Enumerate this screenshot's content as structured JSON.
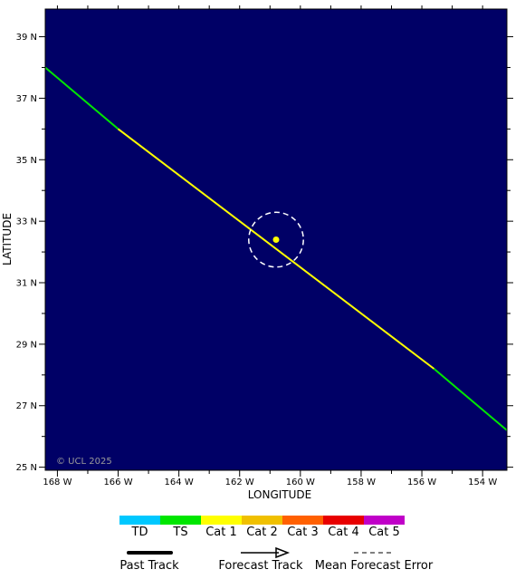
{
  "map": {
    "background_color": "#000066",
    "lon_range": [
      -168.4,
      -153.2
    ],
    "lat_range": [
      24.9,
      39.9
    ],
    "lon_ticks": [
      {
        "value": -168,
        "label": "168 W"
      },
      {
        "value": -166,
        "label": "166 W"
      },
      {
        "value": -164,
        "label": "164 W"
      },
      {
        "value": -162,
        "label": "162 W"
      },
      {
        "value": -160,
        "label": "160 W"
      },
      {
        "value": -158,
        "label": "158 W"
      },
      {
        "value": -156,
        "label": "156 W"
      },
      {
        "value": -154,
        "label": "154 W"
      }
    ],
    "lat_ticks": [
      {
        "value": 25,
        "label": "25 N"
      },
      {
        "value": 27,
        "label": "27 N"
      },
      {
        "value": 29,
        "label": "29 N"
      },
      {
        "value": 31,
        "label": "31 N"
      },
      {
        "value": 33,
        "label": "33 N"
      },
      {
        "value": 35,
        "label": "35 N"
      },
      {
        "value": 37,
        "label": "37 N"
      },
      {
        "value": 39,
        "label": "39 N"
      }
    ],
    "xlabel": "LONGITUDE",
    "ylabel": "LATITUDE",
    "copyright": "© UCL 2025",
    "track_segments": [
      {
        "category": "TS",
        "color": "#00e600",
        "points": [
          [
            -168.4,
            38.0
          ],
          [
            -166.0,
            36.0
          ]
        ]
      },
      {
        "category": "Cat 1",
        "color": "#ffff00",
        "points": [
          [
            -166.0,
            36.0
          ],
          [
            -155.6,
            28.2
          ]
        ]
      },
      {
        "category": "TS",
        "color": "#00e600",
        "points": [
          [
            -155.6,
            28.2
          ],
          [
            -153.2,
            26.2
          ]
        ]
      }
    ],
    "current_position": {
      "lon": -160.8,
      "lat": 32.4,
      "color": "#ffff00"
    },
    "error_circle_radius_deg": 0.9
  },
  "legend": {
    "categories": [
      {
        "label": "TD",
        "color": "#00c8ff"
      },
      {
        "label": "TS",
        "color": "#00e600"
      },
      {
        "label": "Cat 1",
        "color": "#ffff00"
      },
      {
        "label": "Cat 2",
        "color": "#f0c000"
      },
      {
        "label": "Cat 3",
        "color": "#ff6000"
      },
      {
        "label": "Cat 4",
        "color": "#e80000"
      },
      {
        "label": "Cat 5",
        "color": "#c000c8"
      }
    ],
    "past_track_label": "Past Track",
    "forecast_track_label": "Forecast Track",
    "mean_error_label": "Mean Forecast Error"
  }
}
